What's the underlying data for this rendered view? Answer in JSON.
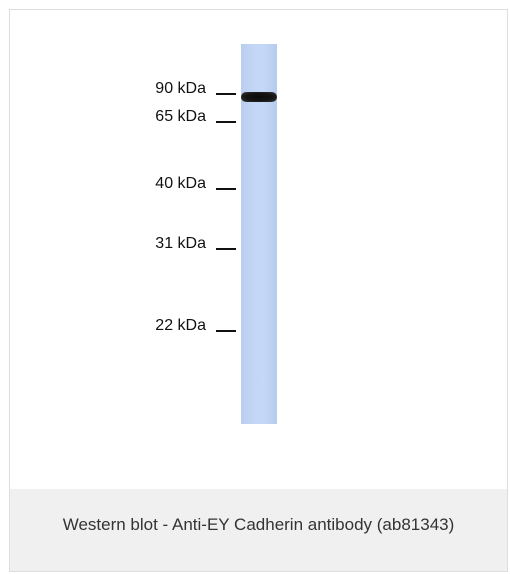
{
  "figure": {
    "markers": [
      {
        "label": "90 kDa"
      },
      {
        "label": "65 kDa"
      },
      {
        "label": "40 kDa"
      },
      {
        "label": "31 kDa"
      },
      {
        "label": "22 kDa"
      }
    ],
    "lane_color": "#c3d6f5",
    "band_color": "#111111"
  },
  "caption": "Western blot - Anti-EY Cadherin antibody (ab81343)"
}
